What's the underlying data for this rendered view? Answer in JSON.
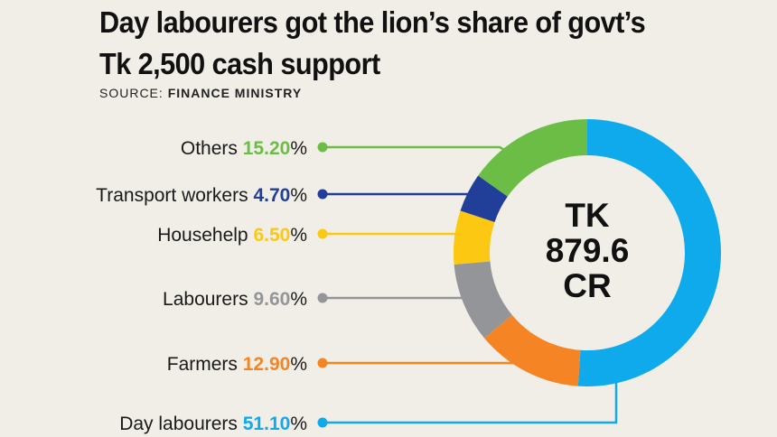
{
  "header": {
    "title_line1": "Day labourers got the lion’s share of govt’s",
    "title_line2": "Tk 2,500 cash support",
    "source_prefix": "SOURCE:",
    "source_name": "FINANCE MINISTRY"
  },
  "center": {
    "line1": "TK",
    "line2": "879.6",
    "line3": "CR"
  },
  "chart_data": {
    "type": "pie",
    "variant": "donut",
    "title": "Day labourers got the lion’s share of govt’s Tk 2,500 cash support",
    "unit": "%",
    "total_label": "TK 879.6 CR",
    "slices": [
      {
        "name": "Day labourers",
        "value": 51.1,
        "value_label": "51.10",
        "color": "#0eaaeb"
      },
      {
        "name": "Farmers",
        "value": 12.9,
        "value_label": "12.90",
        "color": "#f58524"
      },
      {
        "name": "Labourers",
        "value": 9.6,
        "value_label": "9.60",
        "color": "#939598"
      },
      {
        "name": "Househelp",
        "value": 6.5,
        "value_label": "6.50",
        "color": "#fcc811"
      },
      {
        "name": "Transport workers",
        "value": 4.7,
        "value_label": "4.70",
        "color": "#213f99"
      },
      {
        "name": "Others",
        "value": 15.2,
        "value_label": "15.20",
        "color": "#6cbd45"
      }
    ],
    "legend_order": [
      "Others",
      "Transport workers",
      "Househelp",
      "Labourers",
      "Farmers",
      "Day labourers"
    ],
    "start_angle": "top, clockwise"
  }
}
